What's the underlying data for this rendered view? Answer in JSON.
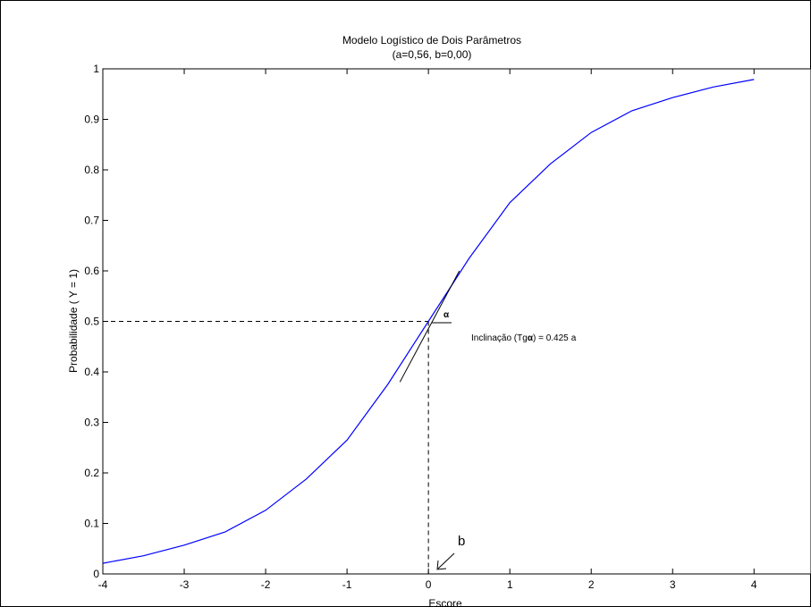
{
  "chart_data": {
    "type": "line",
    "title": "Modelo Logístico de Dois Parâmetros",
    "subtitle": "(a=0,56, b=0,00)",
    "xlabel": "Escore",
    "ylabel": "Probabilidade ( Y = 1)",
    "xlim": [
      -4,
      4.7
    ],
    "ylim": [
      0,
      1
    ],
    "x_ticks": [
      -4,
      -3,
      -2,
      -1,
      0,
      1,
      2,
      3,
      4
    ],
    "x_tick_labels": [
      "-4",
      "-3",
      "-2",
      "-1",
      "0",
      "1",
      "2",
      "3",
      "4"
    ],
    "y_ticks": [
      0,
      0.1,
      0.2,
      0.3,
      0.4,
      0.5,
      0.6,
      0.7,
      0.8,
      0.9,
      1
    ],
    "y_tick_labels": [
      "0",
      "0.1",
      "0.2",
      "0.3",
      "0.4",
      "0.5",
      "0.6",
      "0.7",
      "0.8",
      "0.9",
      "1"
    ],
    "grid": false,
    "series": [
      {
        "color": "#0000ff",
        "x": [
          -4,
          -3.5,
          -3,
          -2.5,
          -2,
          -1.5,
          -1,
          -0.5,
          0,
          0.5,
          1,
          1.5,
          2,
          2.5,
          3,
          3.5,
          4
        ],
        "y": [
          0.021,
          0.036,
          0.057,
          0.083,
          0.126,
          0.188,
          0.265,
          0.375,
          0.5,
          0.625,
          0.735,
          0.812,
          0.874,
          0.917,
          0.943,
          0.964,
          0.979
        ]
      }
    ],
    "tangent": {
      "x1": -0.35,
      "y1": 0.38,
      "x2": 0.38,
      "y2": 0.6,
      "color": "#000000"
    },
    "reference_lines": {
      "x": 0,
      "y": 0.5,
      "style": "dashed"
    },
    "annotations": {
      "alpha_symbol": "α",
      "slope_label": "Inclinação (Tg",
      "slope_alpha": "α",
      "slope_value": ") = 0.425",
      "slope_a": "a",
      "b_label": "b"
    }
  }
}
